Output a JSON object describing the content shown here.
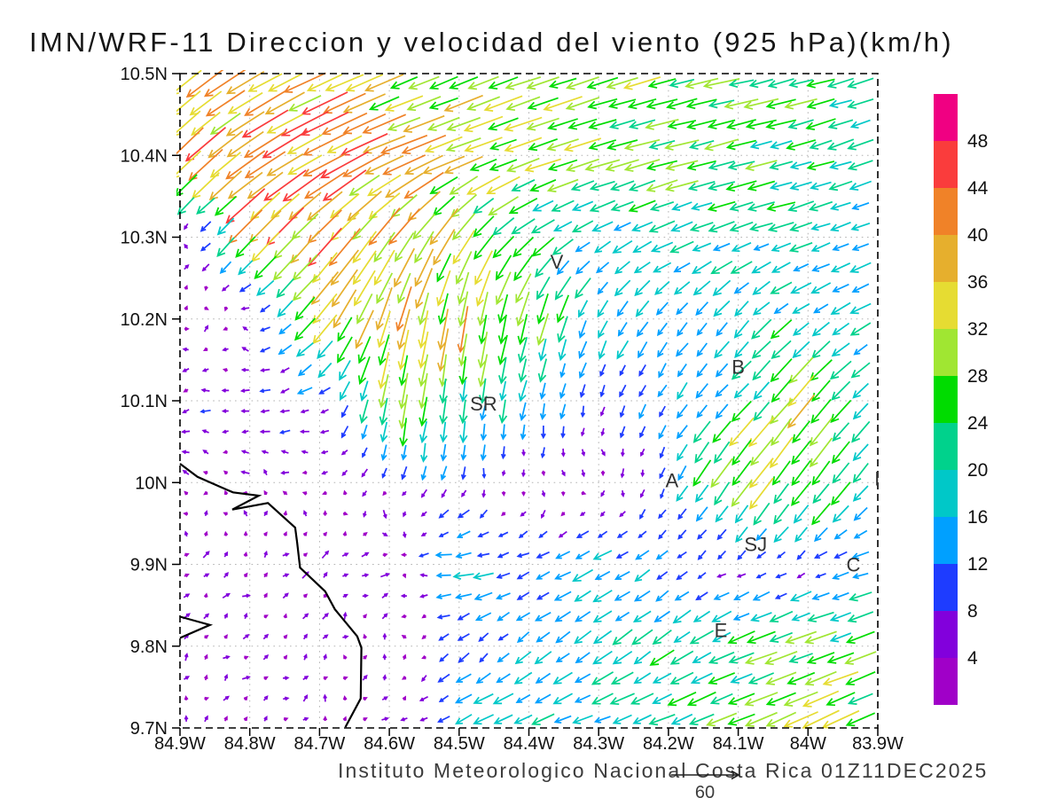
{
  "title": "IMN/WRF-11 Direccion y velocidad del viento (925 hPa)(km/h)",
  "footer": "Instituto Meteorologico Nacional Costa Rica 01Z11DEC2025",
  "chart_data": {
    "type": "quiver",
    "field": "wind direction and speed",
    "pressure_level": "925 hPa",
    "units": "km/h",
    "x_tick_labels": [
      "84.9W",
      "84.8W",
      "84.7W",
      "84.6W",
      "84.5W",
      "84.4W",
      "84.3W",
      "84.2W",
      "84.1W",
      "84W",
      "83.9W"
    ],
    "y_tick_labels": [
      "10.5N",
      "10.4N",
      "10.3N",
      "10.2N",
      "10.1N",
      "10N",
      "9.9N",
      "9.8N",
      "9.7N"
    ],
    "lon_range": [
      -84.9,
      -83.9
    ],
    "lat_range": [
      9.7,
      10.5
    ],
    "grid": true,
    "colorbar": {
      "levels": [
        4,
        8,
        12,
        16,
        20,
        24,
        28,
        32,
        36,
        40,
        44,
        48
      ],
      "colors": [
        "#A000C8",
        "#8200DC",
        "#1E3CFF",
        "#00A0FF",
        "#00C8C8",
        "#00D28C",
        "#00DC00",
        "#A0E632",
        "#E6DC32",
        "#E6AF2D",
        "#F08228",
        "#FA3C3C",
        "#F00082"
      ],
      "tick_labels": [
        "48",
        "44",
        "40",
        "36",
        "32",
        "28",
        "24",
        "20",
        "16",
        "12",
        "8",
        "4"
      ]
    },
    "reference_vector": {
      "label": "60",
      "value_kmh": 60
    },
    "stations": [
      {
        "label": "V",
        "lon": -84.36,
        "lat": 10.27
      },
      {
        "label": "B",
        "lon": -84.1,
        "lat": 10.142
      },
      {
        "label": "SR",
        "lon": -84.465,
        "lat": 10.097
      },
      {
        "label": "A",
        "lon": -84.195,
        "lat": 10.003
      },
      {
        "label": "SJ",
        "lon": -84.075,
        "lat": 9.925
      },
      {
        "label": "C",
        "lon": -83.935,
        "lat": 9.9
      },
      {
        "label": "E",
        "lon": -84.125,
        "lat": 9.82
      },
      {
        "label": "I",
        "lon": -83.901,
        "lat": 10.005
      }
    ],
    "coastline": [
      [
        -84.9,
        10.023
      ],
      [
        -84.875,
        10.007
      ],
      [
        -84.843,
        9.995
      ],
      [
        -84.824,
        9.988
      ],
      [
        -84.787,
        9.984
      ],
      [
        -84.825,
        9.967
      ],
      [
        -84.774,
        9.975
      ],
      [
        -84.735,
        9.945
      ],
      [
        -84.732,
        9.926
      ],
      [
        -84.728,
        9.896
      ],
      [
        -84.692,
        9.867
      ],
      [
        -84.678,
        9.845
      ],
      [
        -84.646,
        9.812
      ],
      [
        -84.64,
        9.798
      ],
      [
        -84.641,
        9.736
      ],
      [
        -84.663,
        9.701
      ]
    ],
    "islet": [
      [
        -84.9,
        9.836
      ],
      [
        -84.857,
        9.826
      ],
      [
        -84.9,
        9.81
      ]
    ],
    "wind_grid": {
      "units": "km/h",
      "lons": [
        -84.9,
        -84.8,
        -84.7,
        -84.6,
        -84.5,
        -84.4,
        -84.3,
        -84.2,
        -84.1,
        -84.0,
        -83.9
      ],
      "lats": [
        10.5,
        10.4,
        10.3,
        10.2,
        10.1,
        10.0,
        9.9,
        9.8,
        9.7
      ],
      "u": [
        [
          -28,
          -32,
          -34,
          -30,
          -26,
          -28,
          -28,
          -26,
          -25,
          -23,
          -21
        ],
        [
          -30,
          -33,
          -35,
          -34,
          -30,
          -27,
          -28,
          -26,
          -24,
          -21,
          -18
        ],
        [
          3,
          -24,
          -26,
          -22,
          -18,
          -18,
          -14,
          -18,
          -17,
          -16,
          -15
        ],
        [
          2,
          -2,
          -20,
          -10,
          -5,
          -6,
          -8,
          -10,
          -12,
          -15,
          -14
        ],
        [
          -5,
          -9,
          -8,
          -4,
          -3,
          -4,
          -2,
          -6,
          -14,
          -20,
          -12
        ],
        [
          -4,
          -3,
          -2,
          -2,
          -2,
          2,
          3,
          -4,
          -20,
          -16,
          -10
        ],
        [
          2,
          4,
          5,
          4,
          -18,
          -10,
          -16,
          -8,
          -4,
          -6,
          -16
        ],
        [
          2,
          3,
          2,
          1,
          -6,
          -10,
          -14,
          -16,
          -20,
          -26,
          -22
        ],
        [
          2,
          3,
          2,
          3,
          -16,
          -18,
          -16,
          -20,
          -24,
          -30,
          -24
        ]
      ],
      "v": [
        [
          -22,
          -18,
          -16,
          -12,
          -10,
          -10,
          -8,
          -7,
          -6,
          -6,
          -7
        ],
        [
          -30,
          -22,
          -18,
          -14,
          -11,
          -9,
          -8,
          -7,
          -6,
          -6,
          -6
        ],
        [
          2,
          -26,
          -28,
          -30,
          -26,
          -12,
          -8,
          -7,
          -6,
          -5,
          -6
        ],
        [
          1,
          3,
          -24,
          -34,
          -34,
          -26,
          -16,
          -12,
          -14,
          -10,
          -7
        ],
        [
          -1,
          -1,
          -2,
          -28,
          -22,
          -14,
          -8,
          -10,
          -14,
          -24,
          -10
        ],
        [
          1,
          2,
          2,
          -6,
          -8,
          -3,
          -2,
          -10,
          -27,
          -22,
          -12
        ],
        [
          2,
          3,
          4,
          2,
          -2,
          -4,
          -8,
          -6,
          -3,
          -4,
          -3
        ],
        [
          2,
          3,
          3,
          2,
          -6,
          -8,
          -10,
          -12,
          -8,
          -8,
          -10
        ],
        [
          2,
          2,
          3,
          2,
          -8,
          -8,
          -6,
          -8,
          -10,
          -14,
          -10
        ]
      ]
    }
  }
}
